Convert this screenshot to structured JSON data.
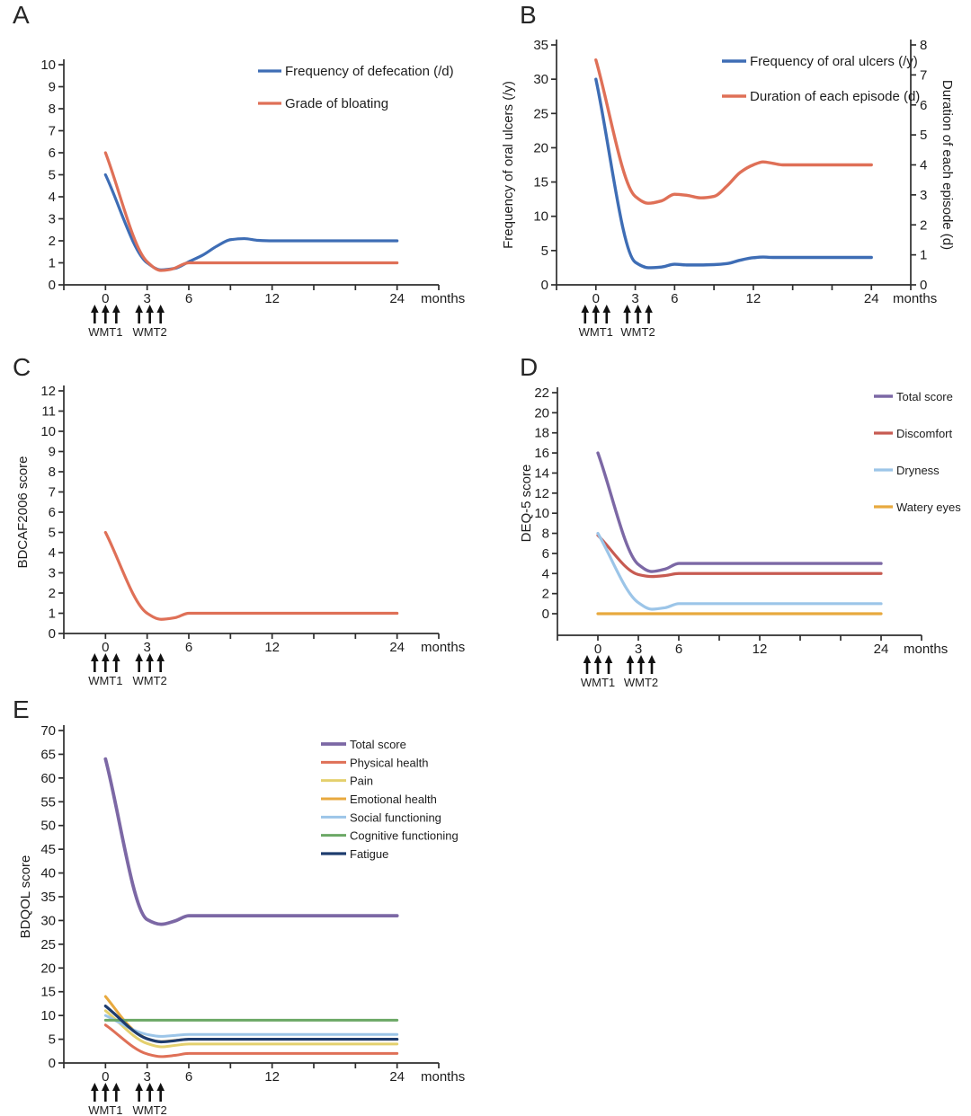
{
  "chart_data": [
    {
      "id": "A",
      "panel_label": "A",
      "type": "line",
      "x_axis": {
        "unit_label": "months",
        "tick_labels": [
          "0",
          "3",
          "6",
          "12",
          "24"
        ],
        "tick_months": [
          0,
          3,
          6,
          12,
          24
        ]
      },
      "y_axis": {
        "label": "",
        "min": 0,
        "max": 10,
        "step": 1,
        "tick_labels": [
          "0",
          "1",
          "2",
          "3",
          "4",
          "5",
          "6",
          "7",
          "8",
          "9",
          "10"
        ]
      },
      "annotations": {
        "wmt1_label": "WMT1",
        "wmt2_label": "WMT2"
      },
      "legend_position": "top-right-inside",
      "series": [
        {
          "name": "Frequency of defecation (/d)",
          "color": "#3E6DB5",
          "width": 3.2,
          "points": [
            [
              0,
              5
            ],
            [
              3,
              1
            ],
            [
              4,
              0.68
            ],
            [
              5,
              0.75
            ],
            [
              6,
              1.05
            ],
            [
              7,
              1.35
            ],
            [
              8,
              1.75
            ],
            [
              9,
              2.05
            ],
            [
              10,
              2.1
            ],
            [
              11,
              2.02
            ],
            [
              12,
              2
            ],
            [
              24,
              2
            ]
          ]
        },
        {
          "name": "Grade of bloating",
          "color": "#DF7057",
          "width": 3.2,
          "points": [
            [
              0,
              6
            ],
            [
              3,
              1.05
            ],
            [
              4,
              0.65
            ],
            [
              4.7,
              0.7
            ],
            [
              6,
              1
            ],
            [
              7,
              1
            ],
            [
              12,
              1
            ],
            [
              24,
              1
            ]
          ]
        }
      ]
    },
    {
      "id": "B",
      "panel_label": "B",
      "type": "line",
      "x_axis": {
        "unit_label": "months",
        "tick_labels": [
          "0",
          "3",
          "6",
          "12",
          "24"
        ],
        "tick_months": [
          0,
          3,
          6,
          12,
          24
        ]
      },
      "y_axis": {
        "label": "Frequency of oral ulcers (/y)",
        "min": 0,
        "max": 35,
        "step": 5,
        "tick_labels": [
          "0",
          "5",
          "10",
          "15",
          "20",
          "25",
          "30",
          "35"
        ]
      },
      "y_axis_right": {
        "label": "Duration of each episode (d)",
        "min": 0,
        "max": 8,
        "step": 1,
        "tick_labels": [
          "0",
          "1",
          "2",
          "3",
          "4",
          "5",
          "6",
          "7",
          "8"
        ]
      },
      "annotations": {
        "wmt1_label": "WMT1",
        "wmt2_label": "WMT2"
      },
      "legend_position": "top-right-inside",
      "series": [
        {
          "name": "Frequency of oral ulcers (/y)",
          "color": "#3E6DB5",
          "width": 3.4,
          "points": [
            [
              0,
              30
            ],
            [
              3,
              3.3
            ],
            [
              4,
              2.5
            ],
            [
              5,
              2.6
            ],
            [
              6,
              3
            ],
            [
              7,
              2.9
            ],
            [
              8,
              2.9
            ],
            [
              9,
              2.95
            ],
            [
              10,
              3.1
            ],
            [
              11,
              3.6
            ],
            [
              12,
              3.95
            ],
            [
              13,
              4.05
            ],
            [
              14,
              4
            ],
            [
              24,
              4
            ]
          ]
        },
        {
          "name": "Duration of each episode (d)",
          "color": "#DF7057",
          "width": 3.4,
          "axis": "right",
          "points": [
            [
              0,
              7.5
            ],
            [
              3,
              2.95
            ],
            [
              4,
              2.72
            ],
            [
              5,
              2.8
            ],
            [
              6,
              3.02
            ],
            [
              7,
              2.98
            ],
            [
              8,
              2.9
            ],
            [
              9,
              2.95
            ],
            [
              10,
              3.3
            ],
            [
              11,
              3.75
            ],
            [
              12,
              4
            ],
            [
              13,
              4.1
            ],
            [
              14,
              4.05
            ],
            [
              15,
              4
            ],
            [
              24,
              4
            ]
          ]
        }
      ]
    },
    {
      "id": "C",
      "panel_label": "C",
      "type": "line",
      "x_axis": {
        "unit_label": "months",
        "tick_labels": [
          "0",
          "3",
          "6",
          "12",
          "24"
        ],
        "tick_months": [
          0,
          3,
          6,
          12,
          24
        ]
      },
      "y_axis": {
        "label": "BDCAF2006 score",
        "min": 0,
        "max": 12,
        "step": 1,
        "tick_labels": [
          "0",
          "1",
          "2",
          "3",
          "4",
          "5",
          "6",
          "7",
          "8",
          "9",
          "10",
          "11",
          "12"
        ]
      },
      "annotations": {
        "wmt1_label": "WMT1",
        "wmt2_label": "WMT2"
      },
      "legend_position": "none",
      "series": [
        {
          "name": "BDCAF2006 score",
          "color": "#DF7057",
          "width": 3.2,
          "show_in_legend": false,
          "points": [
            [
              0,
              5
            ],
            [
              3,
              1
            ],
            [
              4,
              0.7
            ],
            [
              5,
              0.78
            ],
            [
              6,
              1
            ],
            [
              12,
              1
            ],
            [
              24,
              1
            ]
          ]
        }
      ]
    },
    {
      "id": "D",
      "panel_label": "D",
      "type": "line",
      "x_axis": {
        "unit_label": "months",
        "tick_labels": [
          "0",
          "3",
          "6",
          "12",
          "24"
        ],
        "tick_months": [
          0,
          3,
          6,
          12,
          24
        ]
      },
      "y_axis": {
        "label": "DEQ-5 score",
        "min": 0,
        "max": 22,
        "step": 2,
        "tick_labels": [
          "0",
          "2",
          "4",
          "6",
          "8",
          "10",
          "12",
          "14",
          "16",
          "18",
          "20",
          "22"
        ]
      },
      "annotations": {
        "wmt1_label": "WMT1",
        "wmt2_label": "WMT2"
      },
      "legend_position": "top-right-inside",
      "series": [
        {
          "name": "Total score",
          "color": "#7C68A5",
          "width": 3.4,
          "points": [
            [
              0,
              16
            ],
            [
              3,
              4.9
            ],
            [
              4,
              4.2
            ],
            [
              5,
              4.45
            ],
            [
              6,
              5
            ],
            [
              12,
              5
            ],
            [
              24,
              5
            ]
          ]
        },
        {
          "name": "Discomfort",
          "color": "#C75B52",
          "width": 3.2,
          "points": [
            [
              0,
              7.8
            ],
            [
              3,
              3.9
            ],
            [
              4,
              3.7
            ],
            [
              5,
              3.8
            ],
            [
              6,
              4
            ],
            [
              12,
              4
            ],
            [
              24,
              4
            ]
          ]
        },
        {
          "name": "Dryness",
          "color": "#9CC5E8",
          "width": 3.2,
          "points": [
            [
              0,
              8
            ],
            [
              3,
              1.1
            ],
            [
              4,
              0.45
            ],
            [
              5,
              0.6
            ],
            [
              6,
              1
            ],
            [
              12,
              1
            ],
            [
              24,
              1
            ]
          ]
        },
        {
          "name": "Watery eyes",
          "color": "#E8A93E",
          "width": 3.2,
          "points": [
            [
              0,
              0
            ],
            [
              12,
              0
            ],
            [
              24,
              0
            ]
          ]
        }
      ]
    },
    {
      "id": "E",
      "panel_label": "E",
      "type": "line",
      "x_axis": {
        "unit_label": "months",
        "tick_labels": [
          "0",
          "3",
          "6",
          "12",
          "24"
        ],
        "tick_months": [
          0,
          3,
          6,
          12,
          24
        ]
      },
      "y_axis": {
        "label": "BDQOL score",
        "min": 0,
        "max": 70,
        "step": 5,
        "tick_labels": [
          "0",
          "5",
          "10",
          "15",
          "20",
          "25",
          "30",
          "35",
          "40",
          "45",
          "50",
          "55",
          "60",
          "65",
          "70"
        ]
      },
      "annotations": {
        "wmt1_label": "WMT1",
        "wmt2_label": "WMT2"
      },
      "legend_position": "top-right-inside",
      "series": [
        {
          "name": "Total score",
          "color": "#7C68A5",
          "width": 3.8,
          "points": [
            [
              0,
              64
            ],
            [
              3,
              30.2
            ],
            [
              4,
              29.2
            ],
            [
              5,
              29.9
            ],
            [
              6,
              31
            ],
            [
              12,
              31
            ],
            [
              24,
              31
            ]
          ]
        },
        {
          "name": "Physical health",
          "color": "#DF7057",
          "width": 3,
          "points": [
            [
              0,
              8
            ],
            [
              3,
              1.9
            ],
            [
              4,
              1.35
            ],
            [
              5,
              1.6
            ],
            [
              6,
              2
            ],
            [
              12,
              2
            ],
            [
              24,
              2
            ]
          ]
        },
        {
          "name": "Pain",
          "color": "#E4D06E",
          "width": 3,
          "points": [
            [
              0,
              11
            ],
            [
              3,
              4.1
            ],
            [
              4,
              3.4
            ],
            [
              5,
              3.7
            ],
            [
              6,
              4
            ],
            [
              12,
              4
            ],
            [
              24,
              4
            ]
          ]
        },
        {
          "name": "Emotional health",
          "color": "#E8A93E",
          "width": 3,
          "points": [
            [
              0,
              14
            ],
            [
              2,
              7
            ],
            [
              3,
              5.1
            ],
            [
              4,
              4.5
            ],
            [
              5,
              4.75
            ],
            [
              6,
              5
            ],
            [
              12,
              5
            ],
            [
              24,
              5
            ]
          ]
        },
        {
          "name": "Social functioning",
          "color": "#9CC5E8",
          "width": 3,
          "points": [
            [
              0,
              10
            ],
            [
              3,
              6
            ],
            [
              4,
              5.6
            ],
            [
              5,
              5.8
            ],
            [
              6,
              6
            ],
            [
              12,
              6
            ],
            [
              24,
              6
            ]
          ]
        },
        {
          "name": "Cognitive functioning",
          "color": "#6BA865",
          "width": 3,
          "points": [
            [
              0,
              9
            ],
            [
              12,
              9
            ],
            [
              24,
              9
            ]
          ]
        },
        {
          "name": "Fatigue",
          "color": "#1E3C6E",
          "width": 3.2,
          "points": [
            [
              0,
              12
            ],
            [
              3,
              5.1
            ],
            [
              4,
              4.45
            ],
            [
              5,
              4.7
            ],
            [
              6,
              5
            ],
            [
              12,
              5
            ],
            [
              24,
              5
            ]
          ]
        }
      ]
    }
  ]
}
